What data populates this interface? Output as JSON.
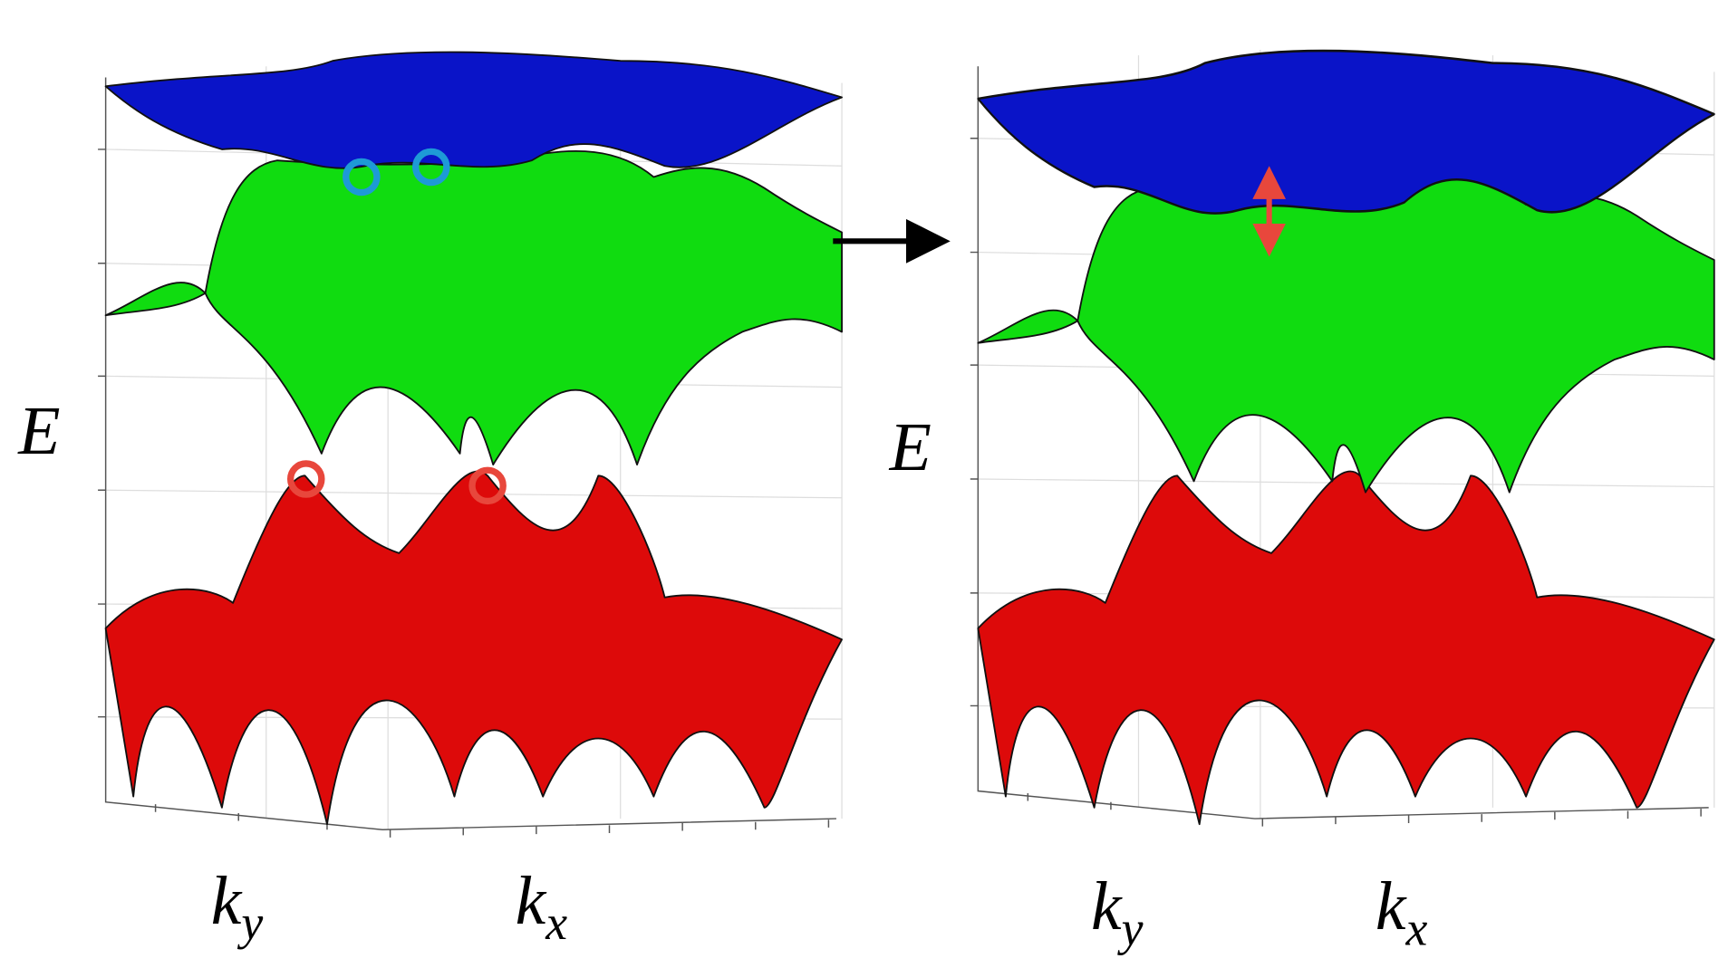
{
  "panels": [
    {
      "energy_label": "E",
      "ky_label": {
        "main": "k",
        "sub": "y"
      },
      "kx_label": {
        "main": "k",
        "sub": "x"
      }
    },
    {
      "energy_label": "E",
      "ky_label": {
        "main": "k",
        "sub": "y"
      },
      "kx_label": {
        "main": "k",
        "sub": "x"
      }
    }
  ]
}
